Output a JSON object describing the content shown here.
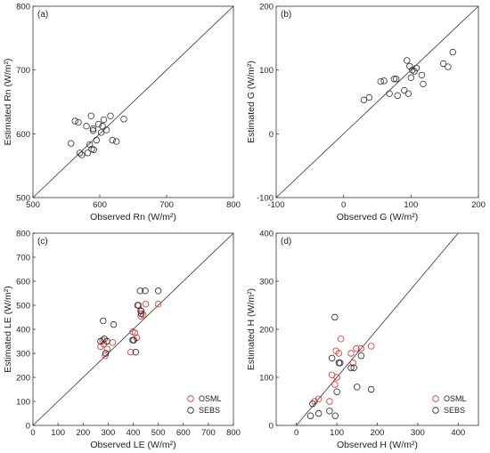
{
  "chart_data": [
    {
      "type": "scatter",
      "panel_label": "(a)",
      "xlabel": "Observed Rn (W/m²)",
      "ylabel": "Estimated Rn (W/m²)",
      "xlim": [
        500,
        800
      ],
      "ylim": [
        500,
        800
      ],
      "xticks": [
        "500",
        "600",
        "700",
        "800"
      ],
      "yticks": [
        "500",
        "600",
        "700",
        "800"
      ],
      "one_to_one_line": true,
      "grid": false,
      "legend": [],
      "series": [
        {
          "color": "#333333",
          "x": [
            557,
            563,
            568,
            570,
            573,
            580,
            582,
            585,
            587,
            588,
            590,
            590,
            591,
            595,
            598,
            602,
            604,
            606,
            610,
            616,
            619,
            625,
            636
          ],
          "y": [
            585,
            620,
            618,
            570,
            567,
            612,
            570,
            583,
            628,
            576,
            608,
            605,
            575,
            590,
            615,
            602,
            612,
            622,
            606,
            628,
            590,
            588,
            623
          ]
        }
      ]
    },
    {
      "type": "scatter",
      "panel_label": "(b)",
      "xlabel": "Observed G (W/m²)",
      "ylabel": "Estimated G (W/m²)",
      "xlim": [
        -100,
        200
      ],
      "ylim": [
        -100,
        200
      ],
      "xticks": [
        "-100",
        "0",
        "100",
        "200"
      ],
      "yticks": [
        "-100",
        "0",
        "100",
        "200"
      ],
      "one_to_one_line": true,
      "grid": false,
      "legend": [],
      "series": [
        {
          "color": "#333333",
          "x": [
            30,
            38,
            55,
            60,
            68,
            75,
            78,
            80,
            90,
            94,
            96,
            98,
            100,
            102,
            105,
            108,
            116,
            118,
            148,
            155,
            162
          ],
          "y": [
            53,
            57,
            82,
            83,
            63,
            86,
            86,
            60,
            68,
            115,
            63,
            106,
            88,
            100,
            98,
            103,
            92,
            78,
            110,
            105,
            128
          ]
        }
      ]
    },
    {
      "type": "scatter",
      "panel_label": "(c)",
      "xlabel": "Observed LE (W/m²)",
      "ylabel": "Estimated LE (W/m²)",
      "xlim": [
        0,
        800
      ],
      "ylim": [
        0,
        800
      ],
      "xticks": [
        "0",
        "100",
        "200",
        "300",
        "400",
        "500",
        "600",
        "700",
        "800"
      ],
      "yticks": [
        "0",
        "100",
        "200",
        "300",
        "400",
        "500",
        "600",
        "700",
        "800"
      ],
      "one_to_one_line": true,
      "grid": false,
      "legend": [
        "OSML",
        "SEBS"
      ],
      "series": [
        {
          "name": "OSML",
          "color": "#e03030",
          "x": [
            270,
            278,
            283,
            288,
            296,
            318,
            390,
            398,
            407,
            414,
            421,
            430,
            433,
            440,
            450,
            500
          ],
          "y": [
            328,
            355,
            338,
            290,
            318,
            345,
            305,
            390,
            385,
            365,
            500,
            455,
            475,
            460,
            505,
            505
          ]
        },
        {
          "name": "SEBS",
          "color": "#222222",
          "x": [
            270,
            280,
            285,
            290,
            295,
            322,
            398,
            402,
            410,
            418,
            428,
            430,
            432,
            448,
            500
          ],
          "y": [
            350,
            435,
            360,
            300,
            350,
            420,
            355,
            355,
            305,
            500,
            560,
            478,
            465,
            560,
            560
          ]
        }
      ]
    },
    {
      "type": "scatter",
      "panel_label": "(d)",
      "xlabel": "Observed H (W/m²)",
      "ylabel": "Estimated H (W/m²)",
      "xlim": [
        -50,
        450
      ],
      "ylim": [
        0,
        400
      ],
      "xticks": [
        "0",
        "100",
        "200",
        "300",
        "400"
      ],
      "yticks": [
        "0",
        "100",
        "200",
        "300",
        "400"
      ],
      "one_to_one_line": true,
      "grid": false,
      "legend": [
        "OSML",
        "SEBS"
      ],
      "series": [
        {
          "name": "OSML",
          "color": "#e03030",
          "x": [
            45,
            55,
            82,
            88,
            95,
            98,
            100,
            105,
            110,
            135,
            140,
            148,
            160,
            185
          ],
          "y": [
            50,
            55,
            50,
            105,
            85,
            155,
            100,
            150,
            180,
            150,
            130,
            160,
            160,
            165
          ]
        },
        {
          "name": "SEBS",
          "color": "#222222",
          "x": [
            35,
            40,
            55,
            82,
            88,
            95,
            96,
            100,
            105,
            108,
            135,
            142,
            150,
            160,
            185
          ],
          "y": [
            20,
            45,
            25,
            30,
            140,
            225,
            20,
            70,
            130,
            130,
            120,
            120,
            80,
            145,
            75
          ]
        }
      ]
    }
  ]
}
